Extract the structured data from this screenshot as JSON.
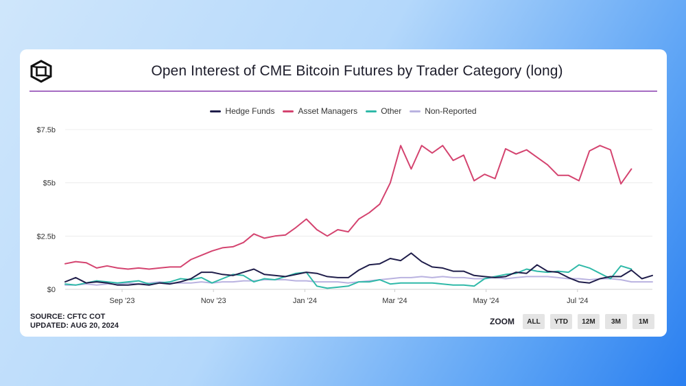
{
  "chart_data": {
    "type": "line",
    "title": "Open Interest of CME Bitcoin Futures by Trader Category (long)",
    "xlabel": "",
    "ylabel": "",
    "ylim": [
      0,
      7.5
    ],
    "y_tick_labels": [
      "$0",
      "$2.5b",
      "$5b",
      "$7.5b"
    ],
    "y_ticks": [
      0,
      2.5,
      5,
      7.5
    ],
    "x_tick_labels": [
      "Sep '23",
      "Nov '23",
      "Jan '24",
      "Mar '24",
      "May '24",
      "Jul '24"
    ],
    "x_tick_dates": [
      "2023-09-01",
      "2023-11-01",
      "2024-01-01",
      "2024-03-01",
      "2024-05-01",
      "2024-07-01"
    ],
    "x_range": [
      "2023-07-25",
      "2024-08-20"
    ],
    "x": [
      "2023-07-25",
      "2023-08-01",
      "2023-08-08",
      "2023-08-15",
      "2023-08-22",
      "2023-08-29",
      "2023-09-05",
      "2023-09-12",
      "2023-09-19",
      "2023-09-26",
      "2023-10-03",
      "2023-10-10",
      "2023-10-17",
      "2023-10-24",
      "2023-10-31",
      "2023-11-07",
      "2023-11-14",
      "2023-11-21",
      "2023-11-28",
      "2023-12-05",
      "2023-12-12",
      "2023-12-19",
      "2023-12-26",
      "2024-01-02",
      "2024-01-09",
      "2024-01-16",
      "2024-01-23",
      "2024-01-30",
      "2024-02-06",
      "2024-02-13",
      "2024-02-20",
      "2024-02-27",
      "2024-03-05",
      "2024-03-12",
      "2024-03-19",
      "2024-03-26",
      "2024-04-02",
      "2024-04-09",
      "2024-04-16",
      "2024-04-23",
      "2024-04-30",
      "2024-05-07",
      "2024-05-14",
      "2024-05-21",
      "2024-05-28",
      "2024-06-04",
      "2024-06-11",
      "2024-06-18",
      "2024-06-25",
      "2024-07-02",
      "2024-07-09",
      "2024-07-16",
      "2024-07-23",
      "2024-07-30",
      "2024-08-06",
      "2024-08-13",
      "2024-08-20"
    ],
    "series": [
      {
        "name": "Hedge Funds",
        "color": "#1f1d4a",
        "values": [
          0.35,
          0.55,
          0.3,
          0.35,
          0.3,
          0.2,
          0.2,
          0.25,
          0.2,
          0.3,
          0.25,
          0.35,
          0.5,
          0.8,
          0.8,
          0.7,
          0.65,
          0.8,
          0.95,
          0.7,
          0.65,
          0.6,
          0.7,
          0.8,
          0.75,
          0.6,
          0.55,
          0.55,
          0.9,
          1.15,
          1.2,
          1.45,
          1.35,
          1.7,
          1.3,
          1.05,
          1.0,
          0.85,
          0.85,
          0.65,
          0.6,
          0.55,
          0.6,
          0.8,
          0.75,
          1.15,
          0.85,
          0.8,
          0.55,
          0.35,
          0.3,
          0.5,
          0.6,
          0.6,
          0.9,
          0.5,
          0.65
        ]
      },
      {
        "name": "Asset Managers",
        "color": "#d4436f",
        "values": [
          1.2,
          1.3,
          1.25,
          1.0,
          1.1,
          1.0,
          0.95,
          1.0,
          0.95,
          1.0,
          1.05,
          1.05,
          1.4,
          1.6,
          1.8,
          1.95,
          2.0,
          2.2,
          2.6,
          2.4,
          2.5,
          2.55,
          2.9,
          3.3,
          2.8,
          2.5,
          2.8,
          2.7,
          3.3,
          3.6,
          4.0,
          5.0,
          6.75,
          5.65,
          6.75,
          6.4,
          6.75,
          6.05,
          6.3,
          5.1,
          5.4,
          5.2,
          6.6,
          6.35,
          6.55,
          6.2,
          5.85,
          5.35,
          5.35,
          5.1,
          6.5,
          6.75,
          6.55,
          4.95,
          5.65,
          null,
          null
        ]
      },
      {
        "name": "Other",
        "color": "#2fb9a8",
        "values": [
          0.25,
          0.2,
          0.3,
          0.4,
          0.35,
          0.3,
          0.35,
          0.4,
          0.25,
          0.3,
          0.35,
          0.5,
          0.45,
          0.55,
          0.3,
          0.5,
          0.7,
          0.65,
          0.35,
          0.5,
          0.45,
          0.6,
          0.75,
          0.8,
          0.15,
          0.05,
          0.1,
          0.15,
          0.35,
          0.35,
          0.45,
          0.25,
          0.3,
          0.3,
          0.3,
          0.3,
          0.25,
          0.2,
          0.2,
          0.15,
          0.5,
          0.6,
          0.7,
          0.75,
          0.95,
          0.85,
          0.8,
          0.85,
          0.8,
          1.15,
          1.0,
          0.75,
          0.5,
          1.1,
          0.95,
          null,
          null
        ]
      },
      {
        "name": "Non-Reported",
        "color": "#b9b2e0",
        "values": [
          0.2,
          0.2,
          0.25,
          0.2,
          0.25,
          0.25,
          0.3,
          0.25,
          0.3,
          0.35,
          0.3,
          0.3,
          0.3,
          0.35,
          0.3,
          0.35,
          0.35,
          0.4,
          0.4,
          0.45,
          0.45,
          0.45,
          0.4,
          0.4,
          0.35,
          0.35,
          0.35,
          0.3,
          0.35,
          0.4,
          0.45,
          0.5,
          0.55,
          0.55,
          0.6,
          0.55,
          0.6,
          0.55,
          0.55,
          0.5,
          0.5,
          0.55,
          0.5,
          0.55,
          0.6,
          0.6,
          0.6,
          0.55,
          0.5,
          0.5,
          0.45,
          0.5,
          0.5,
          0.45,
          0.35,
          0.35,
          0.35
        ]
      }
    ],
    "grid": "horizontal",
    "legend_position": "top-center"
  },
  "footer": {
    "source": "SOURCE: CFTC COT",
    "updated": "UPDATED: AUG 20, 2024"
  },
  "zoom": {
    "label": "ZOOM",
    "buttons": [
      "ALL",
      "YTD",
      "12M",
      "3M",
      "1M"
    ]
  }
}
